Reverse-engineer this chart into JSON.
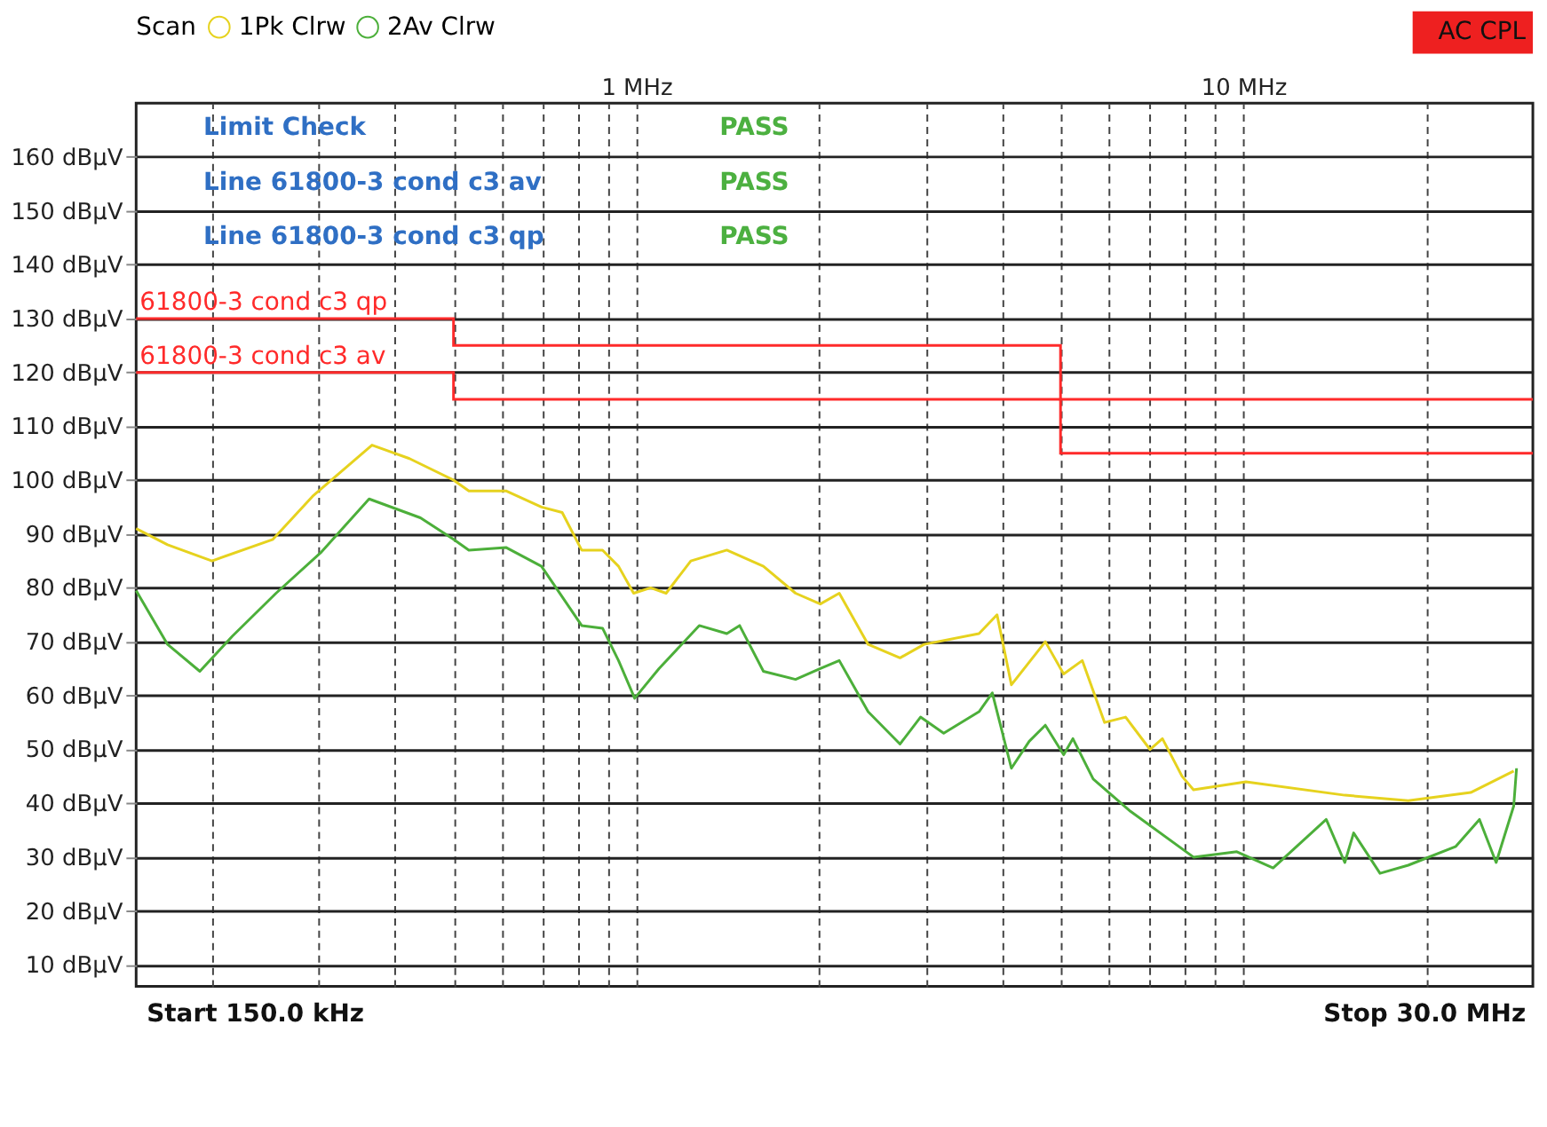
{
  "chart_data": {
    "type": "line",
    "legend_title": "Scan",
    "annotations": [
      "Limit Check",
      "PASS",
      "Line 61800-3 cond c3 av",
      "PASS",
      "Line 61800-3 cond c3 qp",
      "PASS",
      "AC CPL",
      "Start 150.0 kHz",
      "Stop 30.0 MHz"
    ],
    "xlim": [
      0.15,
      30
    ],
    "ylim": [
      6,
      170
    ],
    "xticks": [
      {
        "value": 0.2,
        "label": null
      },
      {
        "value": 0.3,
        "label": null
      },
      {
        "value": 0.4,
        "label": null
      },
      {
        "value": 0.5,
        "label": null
      },
      {
        "value": 0.6,
        "label": null
      },
      {
        "value": 0.7,
        "label": null
      },
      {
        "value": 0.8,
        "label": null
      },
      {
        "value": 0.9,
        "label": null
      },
      {
        "value": 1,
        "label": "1 MHz"
      },
      {
        "value": 2,
        "label": null
      },
      {
        "value": 3,
        "label": null
      },
      {
        "value": 4,
        "label": null
      },
      {
        "value": 5,
        "label": null
      },
      {
        "value": 6,
        "label": null
      },
      {
        "value": 7,
        "label": null
      },
      {
        "value": 8,
        "label": null
      },
      {
        "value": 9,
        "label": null
      },
      {
        "value": 10,
        "label": "10 MHz"
      },
      {
        "value": 20,
        "label": null
      }
    ],
    "yticks": [
      {
        "value": 10,
        "label": "10 dBµV"
      },
      {
        "value": 20,
        "label": "20 dBµV"
      },
      {
        "value": 30,
        "label": "30 dBµV"
      },
      {
        "value": 40,
        "label": "40 dBµV"
      },
      {
        "value": 50,
        "label": "50 dBµV"
      },
      {
        "value": 60,
        "label": "60 dBµV"
      },
      {
        "value": 70,
        "label": "70 dBµV"
      },
      {
        "value": 80,
        "label": "80 dBµV"
      },
      {
        "value": 90,
        "label": "90 dBµV"
      },
      {
        "value": 100,
        "label": "100 dBµV"
      },
      {
        "value": 110,
        "label": "110 dBµV"
      },
      {
        "value": 120,
        "label": "120 dBµV"
      },
      {
        "value": 130,
        "label": "130 dBµV"
      },
      {
        "value": 140,
        "label": "140 dBµV"
      },
      {
        "value": 150,
        "label": "150 dBµV"
      },
      {
        "value": 160,
        "label": "160 dBµV"
      }
    ],
    "log": "x",
    "grid": true,
    "legend": "top left",
    "series": [
      {
        "name": "1Pk Clrw",
        "color": "#e6d21e",
        "x": [
          0.15,
          0.169,
          0.2,
          0.252,
          0.293,
          0.367,
          0.423,
          0.5,
          0.53,
          0.61,
          0.698,
          0.755,
          0.813,
          0.88,
          0.935,
          0.99,
          1.056,
          1.12,
          1.23,
          1.41,
          1.62,
          1.83,
          2.01,
          2.16,
          2.41,
          2.72,
          2.98,
          3.67,
          3.93,
          4.15,
          4.72,
          5.06,
          5.43,
          5.91,
          6.4,
          7.02,
          7.36,
          7.93,
          8.28,
          10.1,
          14.7,
          18.7,
          23.7,
          27.9
        ],
        "values": [
          91,
          88,
          85,
          89,
          97,
          106.5,
          104,
          100,
          98,
          98,
          95,
          94,
          87,
          87,
          84,
          79,
          80,
          79,
          85,
          87,
          84,
          79,
          77,
          79,
          69.5,
          67,
          69.5,
          71.5,
          75,
          62,
          70,
          64,
          66.5,
          55,
          56,
          50,
          52,
          45,
          42.5,
          44,
          41.5,
          40.5,
          42,
          46
        ]
      },
      {
        "name": "2Av Clrw",
        "color": "#4caf3a",
        "x": [
          0.15,
          0.169,
          0.191,
          0.216,
          0.255,
          0.302,
          0.363,
          0.441,
          0.5,
          0.53,
          0.61,
          0.698,
          0.813,
          0.88,
          0.935,
          0.994,
          1.09,
          1.27,
          1.41,
          1.48,
          1.62,
          1.83,
          2.01,
          2.16,
          2.41,
          2.72,
          2.94,
          3.21,
          3.67,
          3.86,
          4.15,
          4.44,
          4.72,
          5.06,
          5.24,
          5.66,
          6.52,
          8.28,
          9.76,
          11.2,
          13.7,
          14.7,
          15.2,
          16.8,
          18.7,
          22.4,
          24.5,
          26.1,
          27.9,
          28.2
        ],
        "values": [
          79.5,
          69.5,
          64.5,
          71,
          79,
          86.5,
          96.5,
          93,
          89,
          87,
          87.5,
          84,
          73,
          72.5,
          66.5,
          59.5,
          65,
          73,
          71.5,
          73,
          64.5,
          63,
          65,
          66.5,
          57,
          51,
          56,
          53,
          57,
          60.5,
          46.5,
          51.5,
          54.5,
          49,
          52,
          44.5,
          38.5,
          30,
          31,
          28,
          37,
          29,
          34.5,
          27,
          28.5,
          32,
          37,
          29,
          39.5,
          46.5
        ]
      },
      {
        "name": "61800-3 cond c3 qp",
        "color": "#ff2a2a",
        "type": "step",
        "x": [
          0.15,
          0.5,
          5,
          30
        ],
        "values": [
          130,
          125,
          115,
          115
        ]
      },
      {
        "name": "61800-3 cond c3 av",
        "color": "#ff2a2a",
        "type": "step",
        "x": [
          0.15,
          0.5,
          5,
          30
        ],
        "values": [
          120,
          115,
          105,
          105
        ]
      }
    ]
  }
}
